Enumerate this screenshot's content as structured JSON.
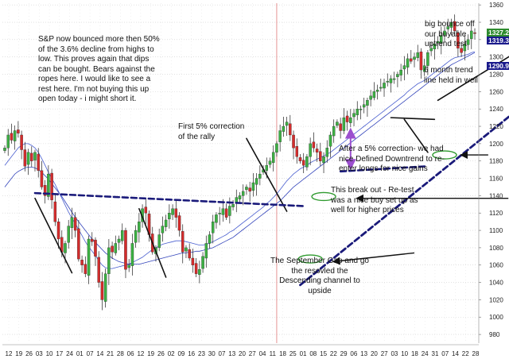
{
  "chart_data": {
    "type": "candlestick",
    "y_axis": {
      "side": "right",
      "ylim": [
        970,
        1362
      ],
      "ticks": [
        1360,
        1340,
        1320,
        1300,
        1280,
        1260,
        1240,
        1220,
        1200,
        1180,
        1160,
        1140,
        1120,
        1100,
        1080,
        1060,
        1040,
        1020,
        1000,
        980
      ]
    },
    "x_tick_labels": [
      "12",
      "19",
      "26",
      "03",
      "10",
      "17",
      "24",
      "01",
      "07",
      "14",
      "21",
      "28",
      "06",
      "12",
      "19",
      "26",
      "02",
      "09",
      "16",
      "23",
      "30",
      "07",
      "13",
      "20",
      "27",
      "04",
      "11",
      "18",
      "25",
      "01",
      "08",
      "15",
      "22",
      "29",
      "06",
      "13",
      "20",
      "27",
      "03",
      "10",
      "18",
      "24",
      "31",
      "07",
      "14",
      "22",
      "28"
    ],
    "grid": "dotted",
    "price_labels": [
      {
        "text": "1327.22",
        "color": "#2e8b2e"
      },
      {
        "text": "1319.3",
        "color": "#1a1a8c"
      },
      {
        "text": "1290.98",
        "color": "#1a1a8c"
      }
    ],
    "closes": [
      1195,
      1210,
      1204,
      1215,
      1212,
      1193,
      1174,
      1190,
      1180,
      1190,
      1169,
      1150,
      1140,
      1165,
      1135,
      1110,
      1090,
      1075,
      1085,
      1105,
      1115,
      1100,
      1067,
      1060,
      1050,
      1090,
      1087,
      1070,
      1040,
      1020,
      1050,
      1080,
      1075,
      1085,
      1090,
      1100,
      1055,
      1060,
      1085,
      1100,
      1110,
      1125,
      1120,
      1095,
      1075,
      1080,
      1095,
      1105,
      1112,
      1120,
      1125,
      1115,
      1100,
      1075,
      1080,
      1068,
      1060,
      1050,
      1055,
      1070,
      1085,
      1095,
      1110,
      1118,
      1120,
      1125,
      1115,
      1128,
      1130,
      1138,
      1140,
      1145,
      1150,
      1145,
      1155,
      1160,
      1165,
      1170,
      1175,
      1180,
      1190,
      1200,
      1215,
      1220,
      1225,
      1210,
      1195,
      1185,
      1180,
      1175,
      1185,
      1200,
      1195,
      1190,
      1180,
      1185,
      1195,
      1210,
      1220,
      1225,
      1215,
      1230,
      1225,
      1230,
      1235,
      1240,
      1240,
      1245,
      1250,
      1255,
      1260,
      1262,
      1265,
      1270,
      1272,
      1275,
      1275,
      1280,
      1285,
      1290,
      1298,
      1295,
      1300,
      1305,
      1285,
      1290,
      1305,
      1310,
      1315,
      1318,
      1325,
      1330,
      1335,
      1340,
      1330,
      1310,
      1305,
      1315,
      1320,
      1330,
      1327
    ],
    "moving_averages": [
      {
        "color": "#4a5fd0",
        "values": [
          1175,
          1180,
          1185,
          1190,
          1195,
          1198,
          1200,
          1200,
          1198,
          1195,
          1190,
          1183,
          1175,
          1167,
          1160,
          1153,
          1145,
          1137,
          1129,
          1121,
          1114,
          1108,
          1101,
          1094,
          1087,
          1081,
          1076,
          1071,
          1065,
          1060,
          1057,
          1056,
          1056,
          1057,
          1058,
          1059,
          1060,
          1061,
          1063,
          1065,
          1067,
          1069,
          1072,
          1075,
          1078,
          1080,
          1082,
          1084,
          1085,
          1086,
          1087,
          1088,
          1088,
          1088,
          1087,
          1086,
          1085,
          1084,
          1083,
          1083,
          1084,
          1085,
          1087,
          1089,
          1091,
          1093,
          1095,
          1098,
          1100,
          1103,
          1106,
          1109,
          1112,
          1115,
          1118,
          1121,
          1124,
          1127,
          1131,
          1134,
          1138,
          1142,
          1147,
          1152,
          1157,
          1161,
          1165,
          1168,
          1171,
          1173,
          1175,
          1178,
          1180,
          1182,
          1184,
          1186,
          1188,
          1190,
          1193,
          1196,
          1199,
          1202,
          1205,
          1208,
          1211,
          1214,
          1217,
          1220,
          1223,
          1226,
          1229,
          1232,
          1235,
          1238,
          1241,
          1244,
          1247,
          1250,
          1253,
          1256,
          1260,
          1263,
          1266,
          1269,
          1271,
          1273,
          1276,
          1279,
          1282,
          1285,
          1288,
          1291,
          1294,
          1297,
          1299,
          1300,
          1301,
          1302,
          1303,
          1305,
          1306
        ]
      },
      {
        "color": "#3344bb",
        "values": [
          1150,
          1155,
          1160,
          1165,
          1168,
          1170,
          1172,
          1173,
          1173,
          1172,
          1170,
          1167,
          1163,
          1159,
          1154,
          1149,
          1144,
          1139,
          1133,
          1127,
          1121,
          1115,
          1110,
          1105,
          1100,
          1095,
          1090,
          1086,
          1082,
          1078,
          1074,
          1071,
          1068,
          1066,
          1064,
          1063,
          1062,
          1061,
          1061,
          1061,
          1061,
          1062,
          1063,
          1064,
          1065,
          1066,
          1067,
          1068,
          1069,
          1070,
          1071,
          1072,
          1073,
          1074,
          1074,
          1075,
          1075,
          1076,
          1076,
          1077,
          1078,
          1079,
          1080,
          1082,
          1084,
          1086,
          1088,
          1090,
          1092,
          1095,
          1098,
          1101,
          1104,
          1107,
          1110,
          1113,
          1116,
          1119,
          1122,
          1125,
          1128,
          1131,
          1134,
          1138,
          1142,
          1146,
          1150,
          1153,
          1156,
          1159,
          1162,
          1165,
          1168,
          1171,
          1174,
          1177,
          1180,
          1183,
          1186,
          1189,
          1192,
          1195,
          1198,
          1201,
          1204,
          1207,
          1210,
          1213,
          1216,
          1219,
          1222,
          1225,
          1228,
          1231,
          1234,
          1237,
          1240,
          1243,
          1246,
          1249,
          1252,
          1255,
          1258,
          1261,
          1264,
          1267,
          1270,
          1273,
          1276,
          1279,
          1282,
          1285,
          1288,
          1291,
          1293,
          1295,
          1297,
          1299,
          1301,
          1303,
          1305
        ]
      }
    ],
    "trendlines": [
      {
        "color": "#111111",
        "style": "solid",
        "width": 1.6,
        "from": [
          9,
          1137
        ],
        "to": [
          20,
          1051
        ]
      },
      {
        "color": "#111111",
        "style": "solid",
        "width": 1.6,
        "from": [
          40,
          1125
        ],
        "to": [
          48,
          1046
        ]
      },
      {
        "color": "#111111",
        "style": "solid",
        "width": 1.6,
        "from": [
          72,
          1206
        ],
        "to": [
          84,
          1122
        ]
      },
      {
        "color": "#111111",
        "style": "solid",
        "width": 1.6,
        "from": [
          115,
          1230
        ],
        "to": [
          128,
          1228
        ]
      },
      {
        "color": "#111111",
        "style": "solid",
        "width": 1.6,
        "from": [
          119,
          1228
        ],
        "to": [
          126,
          1190
        ]
      },
      {
        "color": "#111111",
        "style": "solid",
        "width": 1.6,
        "from": [
          129,
          1250
        ],
        "to": [
          169,
          1345
        ]
      },
      {
        "color": "#1a1a7a",
        "style": "dashed",
        "width": 2.6,
        "from": [
          9,
          1143
        ],
        "to": [
          89,
          1128
        ]
      },
      {
        "color": "#1a1a7a",
        "style": "dashed",
        "width": 2.6,
        "from": [
          100,
          1168
        ],
        "to": [
          126,
          1174
        ]
      },
      {
        "color": "#1a1a7a",
        "style": "dashed",
        "width": 2.8,
        "from": [
          88,
          1037
        ],
        "to": [
          178,
          1318
        ]
      },
      {
        "color": "#9c4fcf",
        "style": "solid",
        "width": 3,
        "from": [
          165,
          1302
        ],
        "to": [
          178,
          1337
        ]
      }
    ],
    "highlight_ellipses": [
      {
        "cx": 95,
        "cy": 1139
      },
      {
        "cx": 91,
        "cy": 1067
      },
      {
        "cx": 131,
        "cy": 1187
      },
      {
        "cx": 165,
        "cy": 1298
      },
      {
        "cx": 179,
        "cy": 1327
      }
    ],
    "arrows": [
      {
        "color": "#111111",
        "from": [
          122,
          1074
        ],
        "to": [
          98,
          1064
        ]
      },
      {
        "color": "#111111",
        "from": [
          150,
          1137
        ],
        "to": [
          105,
          1137
        ]
      },
      {
        "color": "#111111",
        "from": [
          144,
          1187
        ],
        "to": [
          136,
          1187
        ]
      },
      {
        "color": "#111111",
        "from": [
          187,
          1320
        ],
        "to": [
          181,
          1324
        ]
      }
    ],
    "correction_arrow": {
      "color": "#9c4fcf",
      "x": 103,
      "y1": 1216,
      "y2": 1172
    },
    "event_line": {
      "color": "#e07a7a",
      "x": 81
    }
  },
  "annotations": {
    "top_left": "S&P now bounced more then 50%\nof the 3.6% decline from highs to\nlow.  This proves again that dips\ncan be bought.  Bears against the\nropes here.  I would like to see a\nrest here.  I'm not buying this up\nopen today - i might short it.",
    "correction": "First 5% correction\nof the rally",
    "big_bounce": "big bounce off\nour buyable\nuptrend test",
    "six_month": "6 month trend\nline held in well",
    "after_correction": "After a 5% correction- we had\nnice Defined Downtrend to re-\nenter longs for nice gains",
    "break_out": "This break out - Re-test\nwas a nice buy set up as\nwell for higher prices",
    "september_gap": "The September Gap and go\nthe resovled the\nDescending channel to\nupside"
  }
}
